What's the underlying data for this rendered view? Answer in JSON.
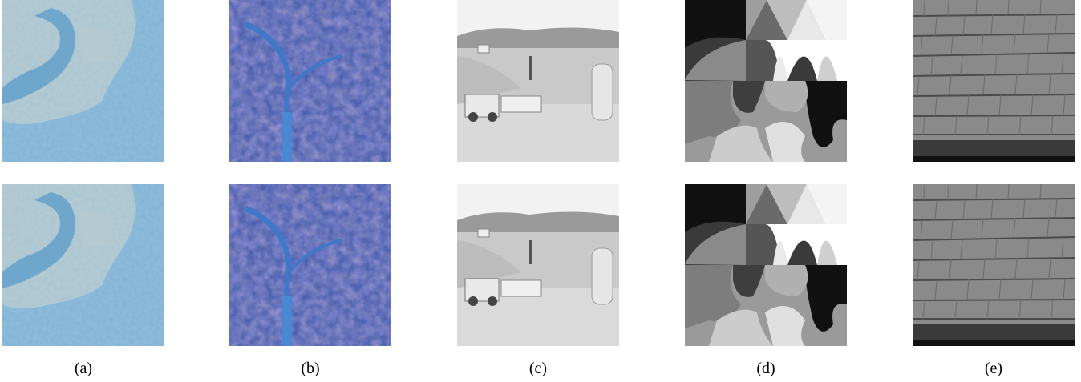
{
  "figure": {
    "columns": [
      {
        "caption": "(a)"
      },
      {
        "caption": "(b)"
      },
      {
        "caption": "(c)"
      },
      {
        "caption": "(d)"
      },
      {
        "caption": "(e)"
      }
    ]
  }
}
